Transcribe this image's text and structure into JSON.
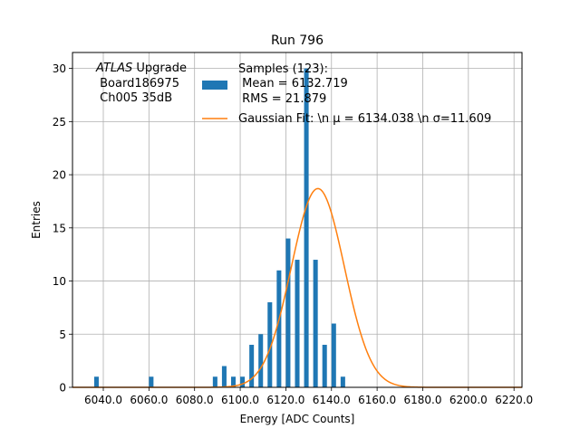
{
  "chart_data": {
    "type": "bar",
    "title": "Run 796",
    "xlabel": "Energy [ADC Counts]",
    "ylabel": "Entries",
    "xlim": [
      6026.5,
      6223.5
    ],
    "ylim": [
      0,
      31.5
    ],
    "grid": true,
    "xticks": [
      6040,
      6060,
      6080,
      6100,
      6120,
      6140,
      6160,
      6180,
      6200,
      6220
    ],
    "xtick_labels": [
      "6040.0",
      "6060.0",
      "6080.0",
      "6100.0",
      "6120.0",
      "6140.0",
      "6160.0",
      "6180.0",
      "6200.0",
      "6220.0"
    ],
    "yticks": [
      0,
      5,
      10,
      15,
      20,
      25,
      30
    ],
    "ytick_labels": [
      "0",
      "5",
      "10",
      "15",
      "20",
      "25",
      "30"
    ],
    "annotation": {
      "lines": [
        {
          "italic": "ATLAS",
          "rest": " Upgrade"
        },
        {
          "italic": "",
          "rest": " Board186975"
        },
        {
          "italic": "",
          "rest": " Ch005 35dB"
        }
      ]
    },
    "legend": {
      "placement": "upper-center",
      "hist_label": [
        "Samples (123):",
        " Mean = 6132.719",
        " RMS = 21.879"
      ],
      "fit_label": "Gaussian Fit: \\n μ = 6134.038 \\n σ=11.609"
    },
    "histogram": {
      "name": "Samples (123):",
      "color": "#1f77b4",
      "bin_edges": [
        6036,
        6038,
        6040,
        6042,
        6044,
        6046,
        6048,
        6050,
        6052,
        6054,
        6056,
        6058,
        6060,
        6062,
        6064,
        6066,
        6068,
        6070,
        6072,
        6074,
        6076,
        6078,
        6080,
        6082,
        6084,
        6086,
        6088,
        6090,
        6092,
        6094,
        6096,
        6098,
        6100,
        6102,
        6104,
        6106,
        6108,
        6110,
        6112,
        6114,
        6116,
        6118,
        6120,
        6122,
        6124,
        6126,
        6128,
        6130,
        6132,
        6134,
        6136,
        6138,
        6140,
        6142,
        6144,
        6146,
        6148,
        6150,
        6152,
        6154,
        6156,
        6158,
        6160,
        6162,
        6164,
        6166,
        6168,
        6170,
        6172,
        6174,
        6176,
        6178,
        6180,
        6182,
        6184,
        6186,
        6188,
        6190,
        6192,
        6194,
        6196,
        6198,
        6200,
        6202,
        6204,
        6206,
        6208,
        6210,
        6212,
        6214,
        6216,
        6218,
        6220
      ],
      "counts": [
        1,
        0,
        0,
        0,
        0,
        0,
        0,
        0,
        0,
        0,
        0,
        0,
        1,
        0,
        0,
        0,
        0,
        0,
        0,
        0,
        0,
        0,
        0,
        0,
        0,
        0,
        1,
        0,
        2,
        0,
        1,
        0,
        1,
        0,
        4,
        0,
        5,
        0,
        8,
        0,
        11,
        0,
        14,
        0,
        12,
        0,
        30,
        0,
        12,
        0,
        4,
        0,
        6,
        0,
        1,
        0,
        0,
        0,
        0,
        0,
        0,
        0,
        0,
        0,
        0,
        0,
        0,
        0,
        0,
        0,
        0,
        0,
        0,
        0,
        0,
        0,
        0,
        0,
        0,
        0,
        0,
        0,
        0,
        0,
        0,
        0,
        0,
        0,
        0,
        0,
        0,
        0
      ]
    },
    "fit": {
      "name": "Gaussian Fit",
      "color": "#ff7f0e",
      "amplitude": 18.7,
      "mu": 6134.038,
      "sigma": 11.609
    }
  }
}
